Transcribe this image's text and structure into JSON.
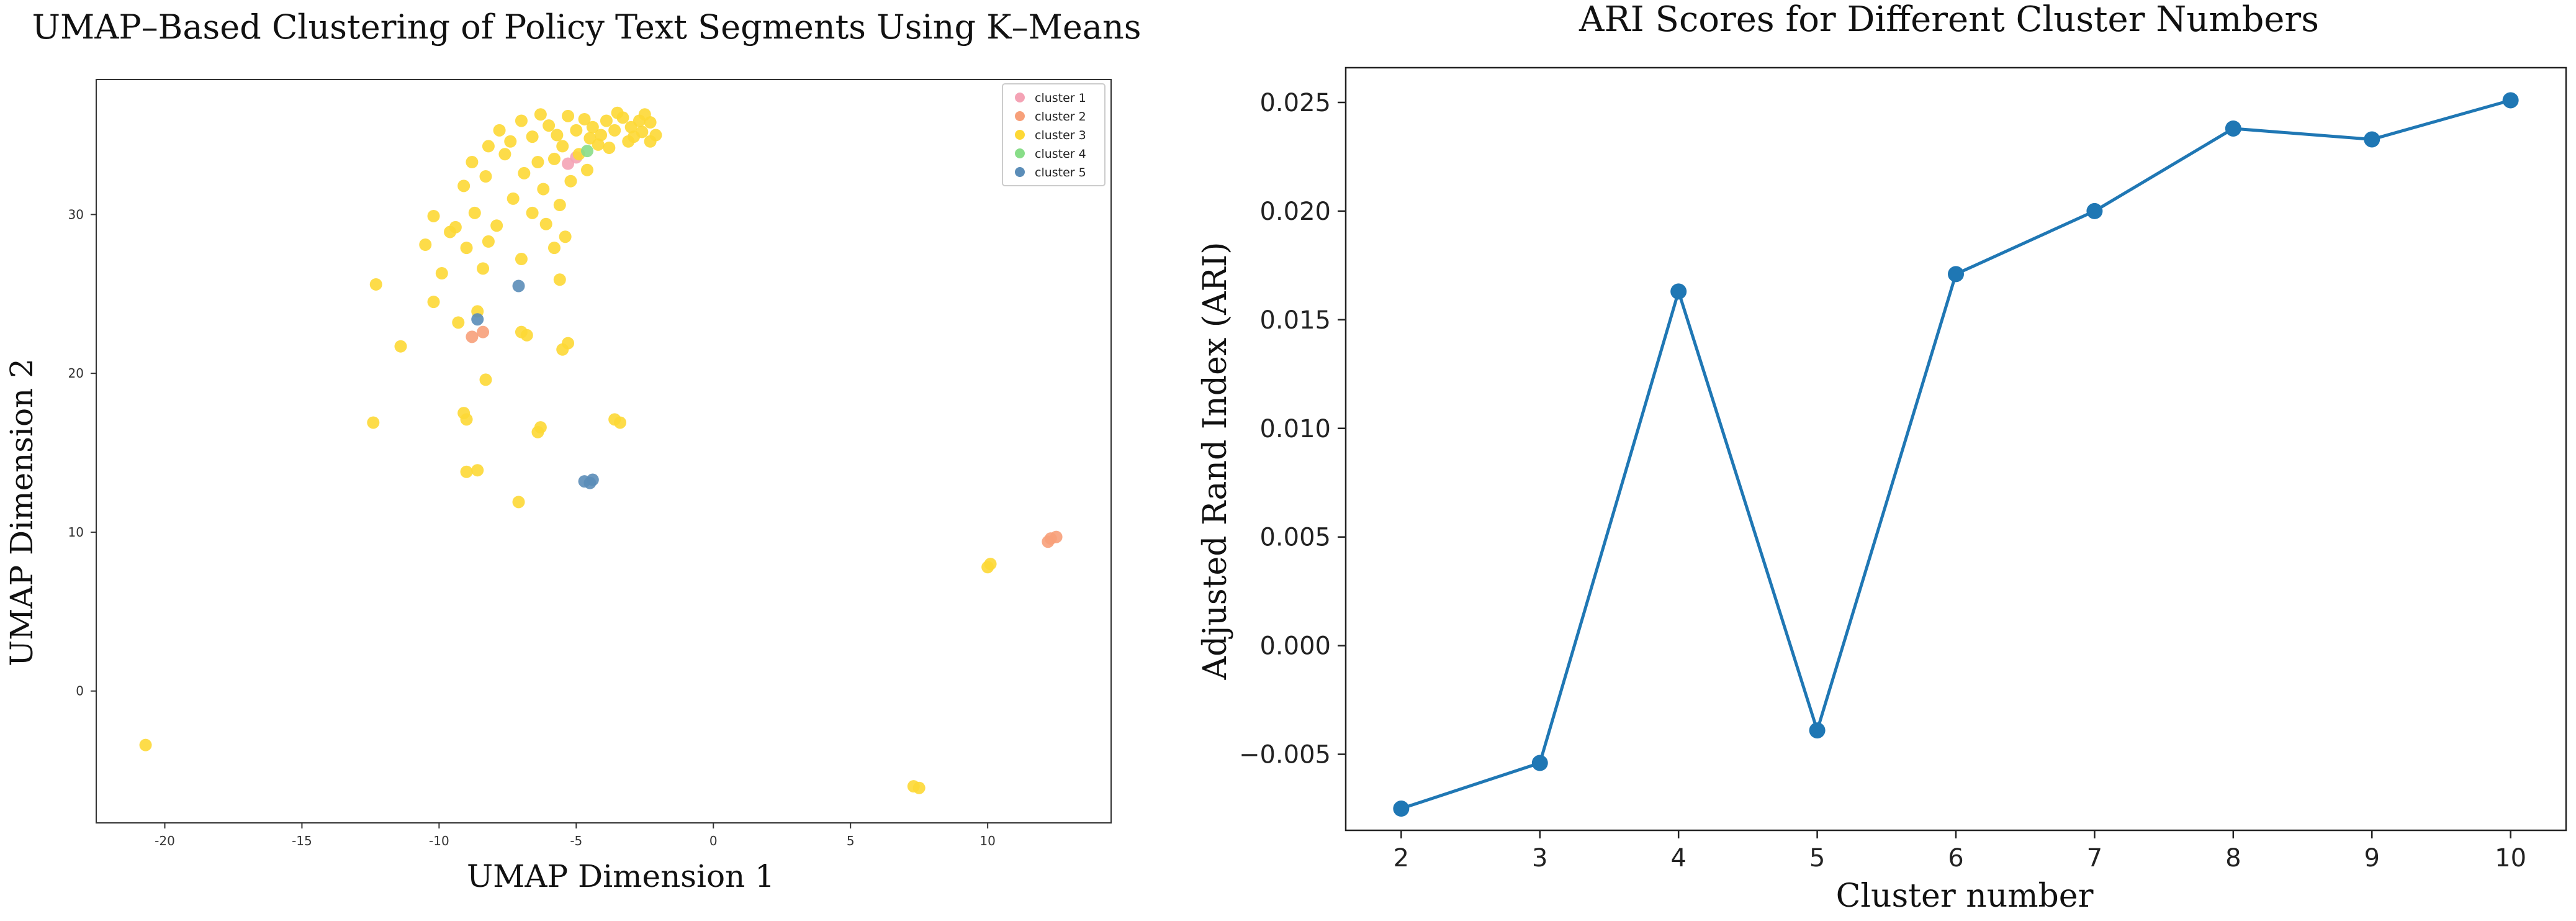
{
  "chart_data": [
    {
      "type": "scatter",
      "title": "UMAP–Based Clustering of Policy Text Segments Using K–Means",
      "xlabel": "UMAP Dimension 1",
      "ylabel": "UMAP Dimension 2",
      "xlim": [
        -22.5,
        14.5
      ],
      "ylim": [
        -8.3,
        38.5
      ],
      "xticks": [
        -20,
        -15,
        -10,
        -5,
        0,
        5,
        10
      ],
      "xtick_labels": [
        "-20",
        "-15",
        "-10",
        "-5",
        "0",
        "5",
        "10"
      ],
      "yticks": [
        0,
        10,
        20,
        30
      ],
      "ytick_labels": [
        "0",
        "10",
        "20",
        "30"
      ],
      "legend_position": "top-right",
      "series": [
        {
          "name": "cluster 1",
          "color": "#f4a3b5",
          "points": [
            [
              -5.3,
              33.2
            ],
            [
              -5.0,
              33.6
            ]
          ]
        },
        {
          "name": "cluster 2",
          "color": "#f7a07a",
          "points": [
            [
              12.3,
              9.6
            ],
            [
              12.5,
              9.7
            ],
            [
              12.2,
              9.4
            ],
            [
              -8.8,
              22.3
            ],
            [
              -8.4,
              22.6
            ]
          ]
        },
        {
          "name": "cluster 3",
          "color": "#fdd835",
          "points": [
            [
              -3,
              35.5
            ],
            [
              -2.6,
              35.2
            ],
            [
              -2.3,
              35.8
            ],
            [
              -3.3,
              36.1
            ],
            [
              -2.9,
              34.9
            ],
            [
              -3.6,
              35.3
            ],
            [
              -2.1,
              35.0
            ],
            [
              -3.9,
              35.9
            ],
            [
              -2.5,
              36.3
            ],
            [
              -4.1,
              35.0
            ],
            [
              -3.1,
              34.6
            ],
            [
              -2.7,
              35.9
            ],
            [
              -4.4,
              35.5
            ],
            [
              -3.5,
              36.4
            ],
            [
              -2.3,
              34.6
            ],
            [
              -4.7,
              36.0
            ],
            [
              -4.2,
              34.4
            ],
            [
              -5.0,
              35.3
            ],
            [
              -5.3,
              36.2
            ],
            [
              -5.7,
              35.0
            ],
            [
              -4.5,
              34.8
            ],
            [
              -3.8,
              34.2
            ],
            [
              -6.0,
              35.6
            ],
            [
              -5.5,
              34.3
            ],
            [
              -6.3,
              36.3
            ],
            [
              -4.9,
              33.8
            ],
            [
              -6.6,
              34.9
            ],
            [
              -7.0,
              35.9
            ],
            [
              -5.8,
              33.5
            ],
            [
              -7.4,
              34.6
            ],
            [
              -6.4,
              33.3
            ],
            [
              -7.8,
              35.3
            ],
            [
              -4.6,
              32.8
            ],
            [
              -6.9,
              32.6
            ],
            [
              -7.6,
              33.8
            ],
            [
              -8.2,
              34.3
            ],
            [
              -5.2,
              32.1
            ],
            [
              -8.3,
              32.4
            ],
            [
              -6.2,
              31.6
            ],
            [
              -8.8,
              33.3
            ],
            [
              -7.3,
              31.0
            ],
            [
              -9.1,
              31.8
            ],
            [
              -5.6,
              30.6
            ],
            [
              -8.7,
              30.1
            ],
            [
              -6.6,
              30.1
            ],
            [
              -10.2,
              29.9
            ],
            [
              -9.4,
              29.2
            ],
            [
              -7.9,
              29.3
            ],
            [
              -6.1,
              29.4
            ],
            [
              -9.6,
              28.9
            ],
            [
              -8.2,
              28.3
            ],
            [
              -5.4,
              28.6
            ],
            [
              -10.5,
              28.1
            ],
            [
              -9.0,
              27.9
            ],
            [
              -7.0,
              27.2
            ],
            [
              -5.8,
              27.9
            ],
            [
              -9.9,
              26.3
            ],
            [
              -8.4,
              26.6
            ],
            [
              -5.6,
              25.9
            ],
            [
              -12.3,
              25.6
            ],
            [
              -10.2,
              24.5
            ],
            [
              -8.6,
              23.9
            ],
            [
              -9.3,
              23.2
            ],
            [
              -7.0,
              22.6
            ],
            [
              -6.8,
              22.4
            ],
            [
              -5.3,
              21.9
            ],
            [
              -5.5,
              21.5
            ],
            [
              -11.4,
              21.7
            ],
            [
              -8.3,
              19.6
            ],
            [
              -9.1,
              17.5
            ],
            [
              -9.0,
              17.1
            ],
            [
              -12.4,
              16.9
            ],
            [
              -6.3,
              16.6
            ],
            [
              -6.4,
              16.3
            ],
            [
              -3.6,
              17.1
            ],
            [
              -3.4,
              16.9
            ],
            [
              -9.0,
              13.8
            ],
            [
              -8.6,
              13.9
            ],
            [
              -7.1,
              11.9
            ],
            [
              10.0,
              7.8
            ],
            [
              10.1,
              8.0
            ],
            [
              -20.7,
              -3.4
            ],
            [
              7.3,
              -6.0
            ],
            [
              7.5,
              -6.1
            ]
          ]
        },
        {
          "name": "cluster 4",
          "color": "#88dd88",
          "points": [
            [
              -4.6,
              34.0
            ]
          ]
        },
        {
          "name": "cluster 5",
          "color": "#5b8db8",
          "points": [
            [
              -4.7,
              13.2
            ],
            [
              -4.4,
              13.3
            ],
            [
              -4.5,
              13.1
            ],
            [
              -8.6,
              23.4
            ],
            [
              -7.1,
              25.5
            ]
          ]
        }
      ]
    },
    {
      "type": "line",
      "title": "ARI Scores for Different Cluster Numbers",
      "xlabel": "Cluster number",
      "ylabel": "Adjusted Rand Index (ARI)",
      "x": [
        2,
        3,
        4,
        5,
        6,
        7,
        8,
        9,
        10
      ],
      "y": [
        -0.0075,
        -0.0054,
        0.0163,
        -0.0039,
        0.0171,
        0.02,
        0.0238,
        0.0233,
        0.0251
      ],
      "xlim": [
        1.6,
        10.4
      ],
      "ylim": [
        -0.0085,
        0.0266
      ],
      "xtick_labels": [
        "2",
        "3",
        "4",
        "5",
        "6",
        "7",
        "8",
        "9",
        "10"
      ],
      "ytick_values": [
        -0.005,
        0.0,
        0.005,
        0.01,
        0.015,
        0.02,
        0.025
      ],
      "ytick_labels": [
        "−0.005",
        "0.000",
        "0.005",
        "0.010",
        "0.015",
        "0.020",
        "0.025"
      ],
      "color": "#1f77b4"
    }
  ]
}
